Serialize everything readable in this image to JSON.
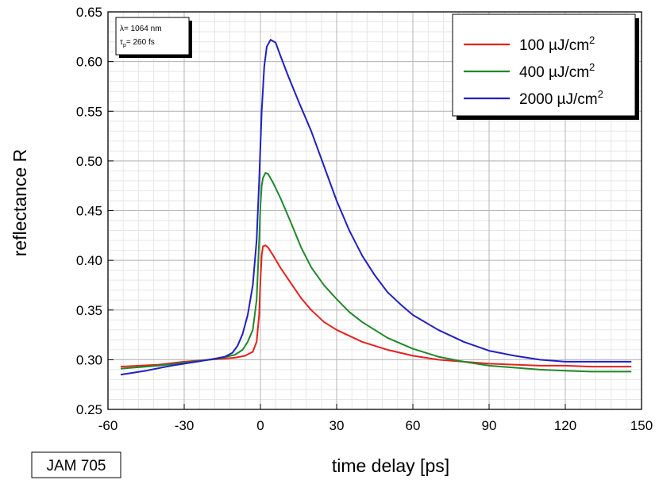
{
  "chart_data": {
    "type": "line",
    "xlabel": "time delay [ps]",
    "ylabel": "reflectance R",
    "xlim": [
      -60,
      150
    ],
    "ylim": [
      0.25,
      0.65
    ],
    "xticks": [
      -60,
      -30,
      0,
      30,
      60,
      90,
      120,
      150
    ],
    "xtick_labels": [
      "-60",
      "-30",
      "0",
      "30",
      "60",
      "90",
      "120",
      "150"
    ],
    "yticks": [
      0.25,
      0.3,
      0.35,
      0.4,
      0.45,
      0.5,
      0.55,
      0.6,
      0.65
    ],
    "ytick_labels": [
      "0.25",
      "0.30",
      "0.35",
      "0.40",
      "0.45",
      "0.50",
      "0.55",
      "0.60",
      "0.65"
    ],
    "grid": true,
    "legend_position": "top-right",
    "info_box": {
      "line1": "λ= 1064 nm",
      "line2_symbol": "τ",
      "line2_sub": "p",
      "line2_rest": "= 260 fs"
    },
    "tag": "JAM 705",
    "series": [
      {
        "label_main": "100 µJ/cm",
        "label_sup": "2",
        "color": "#e8201c",
        "points": [
          [
            -55,
            0.293
          ],
          [
            -40,
            0.295
          ],
          [
            -30,
            0.298
          ],
          [
            -20,
            0.3
          ],
          [
            -15,
            0.301
          ],
          [
            -10,
            0.302
          ],
          [
            -6,
            0.304
          ],
          [
            -3,
            0.308
          ],
          [
            -1.5,
            0.318
          ],
          [
            -0.5,
            0.345
          ],
          [
            0,
            0.38
          ],
          [
            0.5,
            0.405
          ],
          [
            1,
            0.414
          ],
          [
            2,
            0.415
          ],
          [
            3,
            0.413
          ],
          [
            5,
            0.405
          ],
          [
            8,
            0.392
          ],
          [
            12,
            0.377
          ],
          [
            16,
            0.362
          ],
          [
            20,
            0.35
          ],
          [
            25,
            0.338
          ],
          [
            30,
            0.33
          ],
          [
            40,
            0.318
          ],
          [
            50,
            0.31
          ],
          [
            60,
            0.304
          ],
          [
            70,
            0.3
          ],
          [
            80,
            0.298
          ],
          [
            90,
            0.296
          ],
          [
            100,
            0.295
          ],
          [
            110,
            0.294
          ],
          [
            120,
            0.294
          ],
          [
            130,
            0.293
          ],
          [
            140,
            0.293
          ],
          [
            146,
            0.293
          ]
        ]
      },
      {
        "label_main": "400 µJ/cm",
        "label_sup": "2",
        "color": "#1e8a28",
        "points": [
          [
            -55,
            0.291
          ],
          [
            -40,
            0.294
          ],
          [
            -30,
            0.297
          ],
          [
            -20,
            0.3
          ],
          [
            -15,
            0.302
          ],
          [
            -10,
            0.305
          ],
          [
            -7,
            0.31
          ],
          [
            -5,
            0.318
          ],
          [
            -3,
            0.33
          ],
          [
            -1.5,
            0.36
          ],
          [
            -0.5,
            0.42
          ],
          [
            0,
            0.455
          ],
          [
            0.5,
            0.475
          ],
          [
            1,
            0.483
          ],
          [
            2,
            0.488
          ],
          [
            3,
            0.487
          ],
          [
            5,
            0.478
          ],
          [
            8,
            0.462
          ],
          [
            12,
            0.438
          ],
          [
            16,
            0.413
          ],
          [
            20,
            0.393
          ],
          [
            25,
            0.375
          ],
          [
            30,
            0.361
          ],
          [
            35,
            0.348
          ],
          [
            40,
            0.338
          ],
          [
            50,
            0.322
          ],
          [
            60,
            0.311
          ],
          [
            70,
            0.303
          ],
          [
            80,
            0.298
          ],
          [
            90,
            0.294
          ],
          [
            100,
            0.292
          ],
          [
            110,
            0.29
          ],
          [
            120,
            0.289
          ],
          [
            130,
            0.288
          ],
          [
            140,
            0.288
          ],
          [
            146,
            0.288
          ]
        ]
      },
      {
        "label_main": "2000 µJ/cm",
        "label_sup": "2",
        "color": "#1f1fc8",
        "points": [
          [
            -55,
            0.285
          ],
          [
            -45,
            0.289
          ],
          [
            -35,
            0.294
          ],
          [
            -25,
            0.298
          ],
          [
            -18,
            0.301
          ],
          [
            -14,
            0.303
          ],
          [
            -11,
            0.307
          ],
          [
            -9,
            0.314
          ],
          [
            -7,
            0.326
          ],
          [
            -5,
            0.345
          ],
          [
            -3,
            0.375
          ],
          [
            -1.5,
            0.42
          ],
          [
            -0.5,
            0.48
          ],
          [
            0.5,
            0.55
          ],
          [
            1.5,
            0.595
          ],
          [
            2.5,
            0.615
          ],
          [
            4,
            0.622
          ],
          [
            6,
            0.619
          ],
          [
            8,
            0.605
          ],
          [
            11,
            0.585
          ],
          [
            15,
            0.56
          ],
          [
            20,
            0.53
          ],
          [
            25,
            0.495
          ],
          [
            30,
            0.46
          ],
          [
            35,
            0.43
          ],
          [
            40,
            0.405
          ],
          [
            45,
            0.385
          ],
          [
            50,
            0.368
          ],
          [
            55,
            0.356
          ],
          [
            60,
            0.345
          ],
          [
            70,
            0.33
          ],
          [
            80,
            0.318
          ],
          [
            90,
            0.309
          ],
          [
            100,
            0.304
          ],
          [
            110,
            0.3
          ],
          [
            120,
            0.298
          ],
          [
            130,
            0.298
          ],
          [
            140,
            0.298
          ],
          [
            146,
            0.298
          ]
        ]
      }
    ]
  }
}
